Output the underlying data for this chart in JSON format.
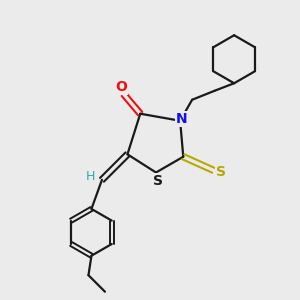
{
  "background_color": "#ebebeb",
  "bond_color": "#1a1a1a",
  "N_color": "#1010ee",
  "O_color": "#ee1010",
  "S_color": "#b8a800",
  "H_color": "#2aada8",
  "figsize": [
    3.0,
    3.0
  ],
  "dpi": 100,
  "xlim": [
    0,
    10
  ],
  "ylim": [
    0,
    10
  ]
}
